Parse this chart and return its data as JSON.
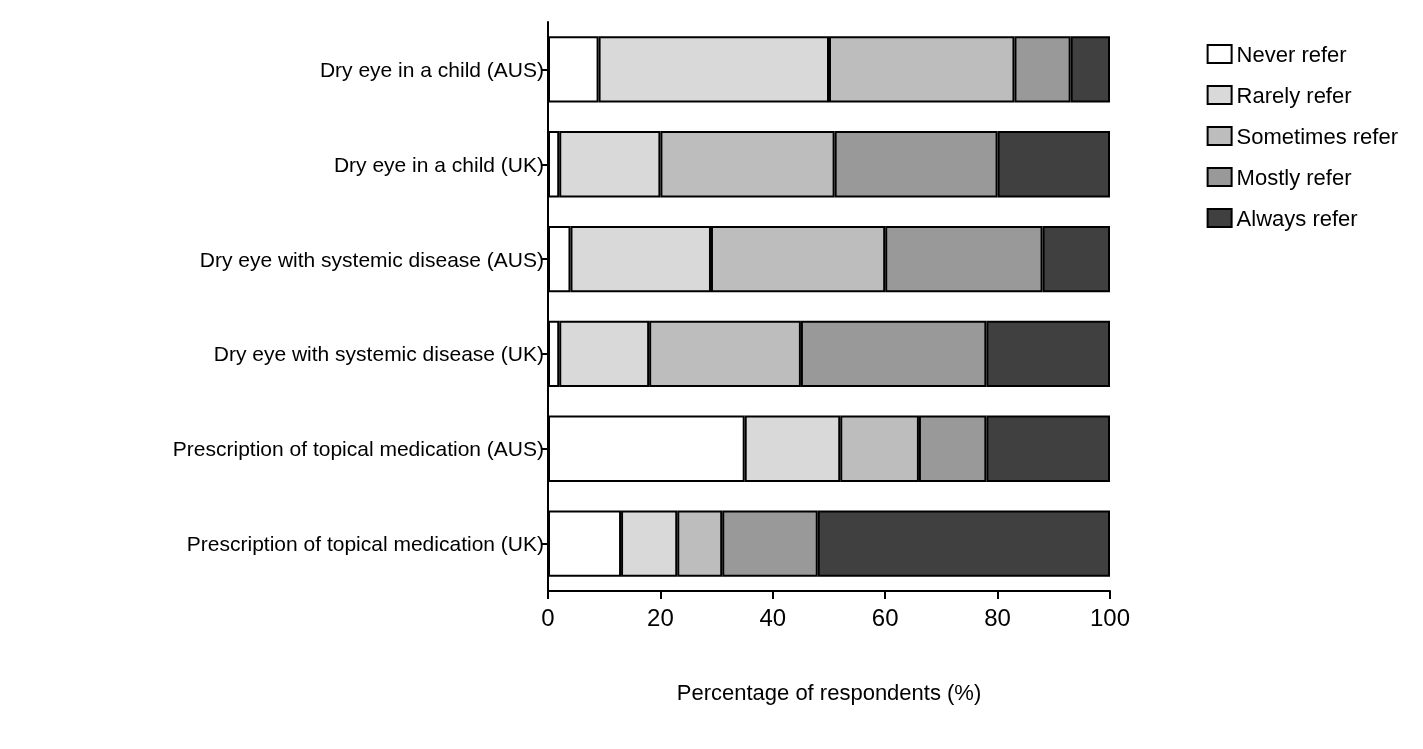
{
  "chart_data": {
    "type": "bar",
    "orientation": "horizontal",
    "stacked": true,
    "xlabel": "Percentage of respondents (%)",
    "categories": [
      "Dry eye in a child (AUS)",
      "Dry eye in a child (UK)",
      "Dry eye with systemic disease (AUS)",
      "Dry eye with systemic disease (UK)",
      "Prescription of topical medication (AUS)",
      "Prescription of topical medication (UK)"
    ],
    "series": [
      {
        "name": "Never refer",
        "color": "#ffffff",
        "values": [
          9,
          2,
          4,
          2,
          35,
          13
        ]
      },
      {
        "name": "Rarely refer",
        "color": "#d9d9d9",
        "values": [
          41,
          18,
          25,
          16,
          17,
          10
        ]
      },
      {
        "name": "Sometimes refer",
        "color": "#bdbdbd",
        "values": [
          33,
          31,
          31,
          27,
          14,
          8
        ]
      },
      {
        "name": "Mostly refer",
        "color": "#999999",
        "values": [
          10,
          29,
          28,
          33,
          12,
          17
        ]
      },
      {
        "name": "Always refer",
        "color": "#404040",
        "values": [
          7,
          20,
          12,
          22,
          22,
          52
        ]
      }
    ],
    "xlim": [
      0,
      100
    ],
    "xticks": [
      0,
      20,
      40,
      60,
      80,
      100
    ],
    "grid": false,
    "legend": "top right"
  }
}
